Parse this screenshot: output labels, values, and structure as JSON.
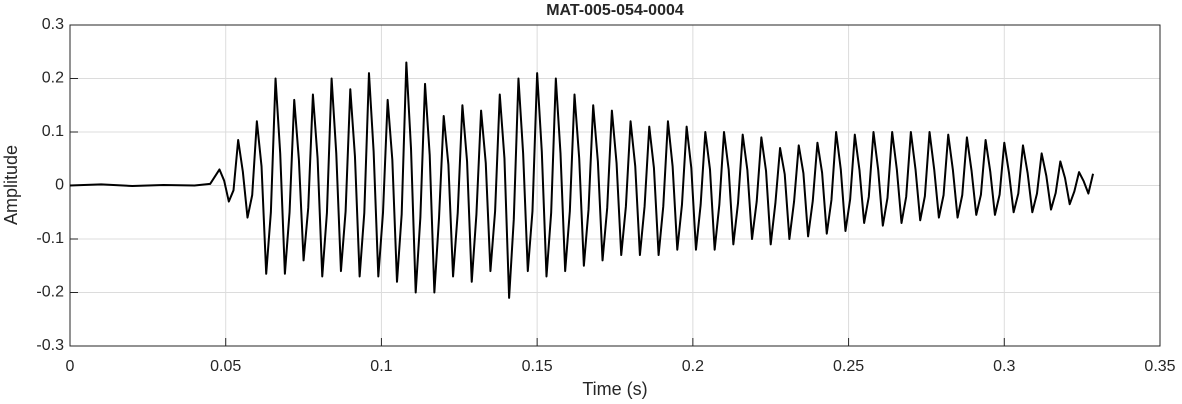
{
  "chart_data": {
    "type": "line",
    "title": "MAT-005-054-0004",
    "x_label": "Time (s)",
    "y_label": "Amplitude",
    "color": "#000000",
    "grid": true,
    "xlim": [
      0,
      0.35
    ],
    "xticks": [
      0,
      0.05,
      0.1,
      0.15,
      0.2,
      0.25,
      0.3,
      0.35
    ],
    "ylim": [
      -0.3,
      0.3
    ],
    "yticks": [
      -0.3,
      -0.2,
      -0.1,
      0,
      0.1,
      0.2,
      0.3
    ],
    "x": [
      0,
      0.01,
      0.02,
      0.03,
      0.04,
      0.045,
      0.048,
      0.0495,
      0.051,
      0.0525,
      0.054,
      0.0555,
      0.057,
      0.0585,
      0.06,
      0.0615,
      0.063,
      0.0645,
      0.066,
      0.0675,
      0.069,
      0.0705,
      0.072,
      0.0735,
      0.075,
      0.0765,
      0.078,
      0.0795,
      0.081,
      0.0825,
      0.084,
      0.0855,
      0.087,
      0.0885,
      0.09,
      0.0915,
      0.093,
      0.0945,
      0.096,
      0.0975,
      0.099,
      0.1005,
      0.102,
      0.1035,
      0.105,
      0.1065,
      0.108,
      0.1095,
      0.111,
      0.1125,
      0.114,
      0.1155,
      0.117,
      0.1185,
      0.12,
      0.1215,
      0.123,
      0.1245,
      0.126,
      0.1275,
      0.129,
      0.1305,
      0.132,
      0.1335,
      0.135,
      0.1365,
      0.138,
      0.1395,
      0.141,
      0.1425,
      0.144,
      0.1455,
      0.147,
      0.1485,
      0.15,
      0.1515,
      0.153,
      0.1545,
      0.156,
      0.1575,
      0.159,
      0.1605,
      0.162,
      0.1635,
      0.165,
      0.1665,
      0.168,
      0.1695,
      0.171,
      0.1725,
      0.174,
      0.1755,
      0.177,
      0.1785,
      0.18,
      0.1815,
      0.183,
      0.1845,
      0.186,
      0.1875,
      0.189,
      0.1905,
      0.192,
      0.1935,
      0.195,
      0.1965,
      0.198,
      0.1995,
      0.201,
      0.2025,
      0.204,
      0.2055,
      0.207,
      0.2085,
      0.21,
      0.2115,
      0.213,
      0.2145,
      0.216,
      0.2175,
      0.219,
      0.2205,
      0.222,
      0.2235,
      0.225,
      0.2265,
      0.228,
      0.2295,
      0.231,
      0.2325,
      0.234,
      0.2355,
      0.237,
      0.2385,
      0.24,
      0.2415,
      0.243,
      0.2445,
      0.246,
      0.2475,
      0.249,
      0.2505,
      0.252,
      0.2535,
      0.255,
      0.2565,
      0.258,
      0.2595,
      0.261,
      0.2625,
      0.264,
      0.2655,
      0.267,
      0.2685,
      0.27,
      0.2715,
      0.273,
      0.2745,
      0.276,
      0.2775,
      0.279,
      0.2805,
      0.282,
      0.2835,
      0.285,
      0.2865,
      0.288,
      0.2895,
      0.291,
      0.2925,
      0.294,
      0.2955,
      0.297,
      0.2985,
      0.3,
      0.3015,
      0.303,
      0.3045,
      0.306,
      0.3075,
      0.309,
      0.3105,
      0.312,
      0.3135,
      0.315,
      0.3165,
      0.318,
      0.3195,
      0.321,
      0.3225,
      0.324,
      0.3255,
      0.327,
      0.3285
    ],
    "values": [
      0,
      0.002,
      -0.001,
      0.001,
      0,
      0.003,
      0.03,
      0.009,
      -0.03,
      -0.009,
      0.085,
      0.026,
      -0.06,
      -0.018,
      0.12,
      0.036,
      -0.165,
      -0.05,
      0.2,
      0.06,
      -0.165,
      -0.05,
      0.16,
      0.048,
      -0.14,
      -0.042,
      0.17,
      0.051,
      -0.17,
      -0.051,
      0.2,
      0.06,
      -0.16,
      -0.048,
      0.18,
      0.054,
      -0.17,
      -0.051,
      0.21,
      0.063,
      -0.17,
      -0.051,
      0.16,
      0.048,
      -0.18,
      -0.054,
      0.23,
      0.069,
      -0.2,
      -0.06,
      0.19,
      0.057,
      -0.2,
      -0.06,
      0.13,
      0.039,
      -0.17,
      -0.051,
      0.15,
      0.045,
      -0.18,
      -0.054,
      0.14,
      0.042,
      -0.16,
      -0.048,
      0.17,
      0.051,
      -0.21,
      -0.063,
      0.2,
      0.06,
      -0.16,
      -0.048,
      0.21,
      0.063,
      -0.17,
      -0.051,
      0.2,
      0.06,
      -0.16,
      -0.048,
      0.17,
      0.051,
      -0.15,
      -0.045,
      0.15,
      0.045,
      -0.14,
      -0.042,
      0.14,
      0.042,
      -0.13,
      -0.039,
      0.12,
      0.036,
      -0.13,
      -0.039,
      0.11,
      0.033,
      -0.13,
      -0.039,
      0.12,
      0.036,
      -0.12,
      -0.036,
      0.11,
      0.033,
      -0.12,
      -0.036,
      0.1,
      0.03,
      -0.12,
      -0.036,
      0.1,
      0.03,
      -0.11,
      -0.033,
      0.095,
      0.029,
      -0.1,
      -0.03,
      0.09,
      0.027,
      -0.11,
      -0.033,
      0.07,
      0.021,
      -0.1,
      -0.03,
      0.075,
      0.023,
      -0.095,
      -0.029,
      0.08,
      0.024,
      -0.09,
      -0.027,
      0.1,
      0.03,
      -0.085,
      -0.026,
      0.095,
      0.029,
      -0.07,
      -0.021,
      0.1,
      0.03,
      -0.075,
      -0.023,
      0.1,
      0.03,
      -0.07,
      -0.021,
      0.1,
      0.03,
      -0.065,
      -0.02,
      0.1,
      0.03,
      -0.06,
      -0.018,
      0.095,
      0.029,
      -0.06,
      -0.018,
      0.09,
      0.027,
      -0.055,
      -0.017,
      0.085,
      0.026,
      -0.055,
      -0.017,
      0.08,
      0.024,
      -0.05,
      -0.015,
      0.075,
      0.023,
      -0.05,
      -0.015,
      0.06,
      0.018,
      -0.045,
      -0.014,
      0.045,
      0.014,
      -0.035,
      -0.011,
      0.025,
      0.008,
      -0.015,
      0.022
    ]
  }
}
